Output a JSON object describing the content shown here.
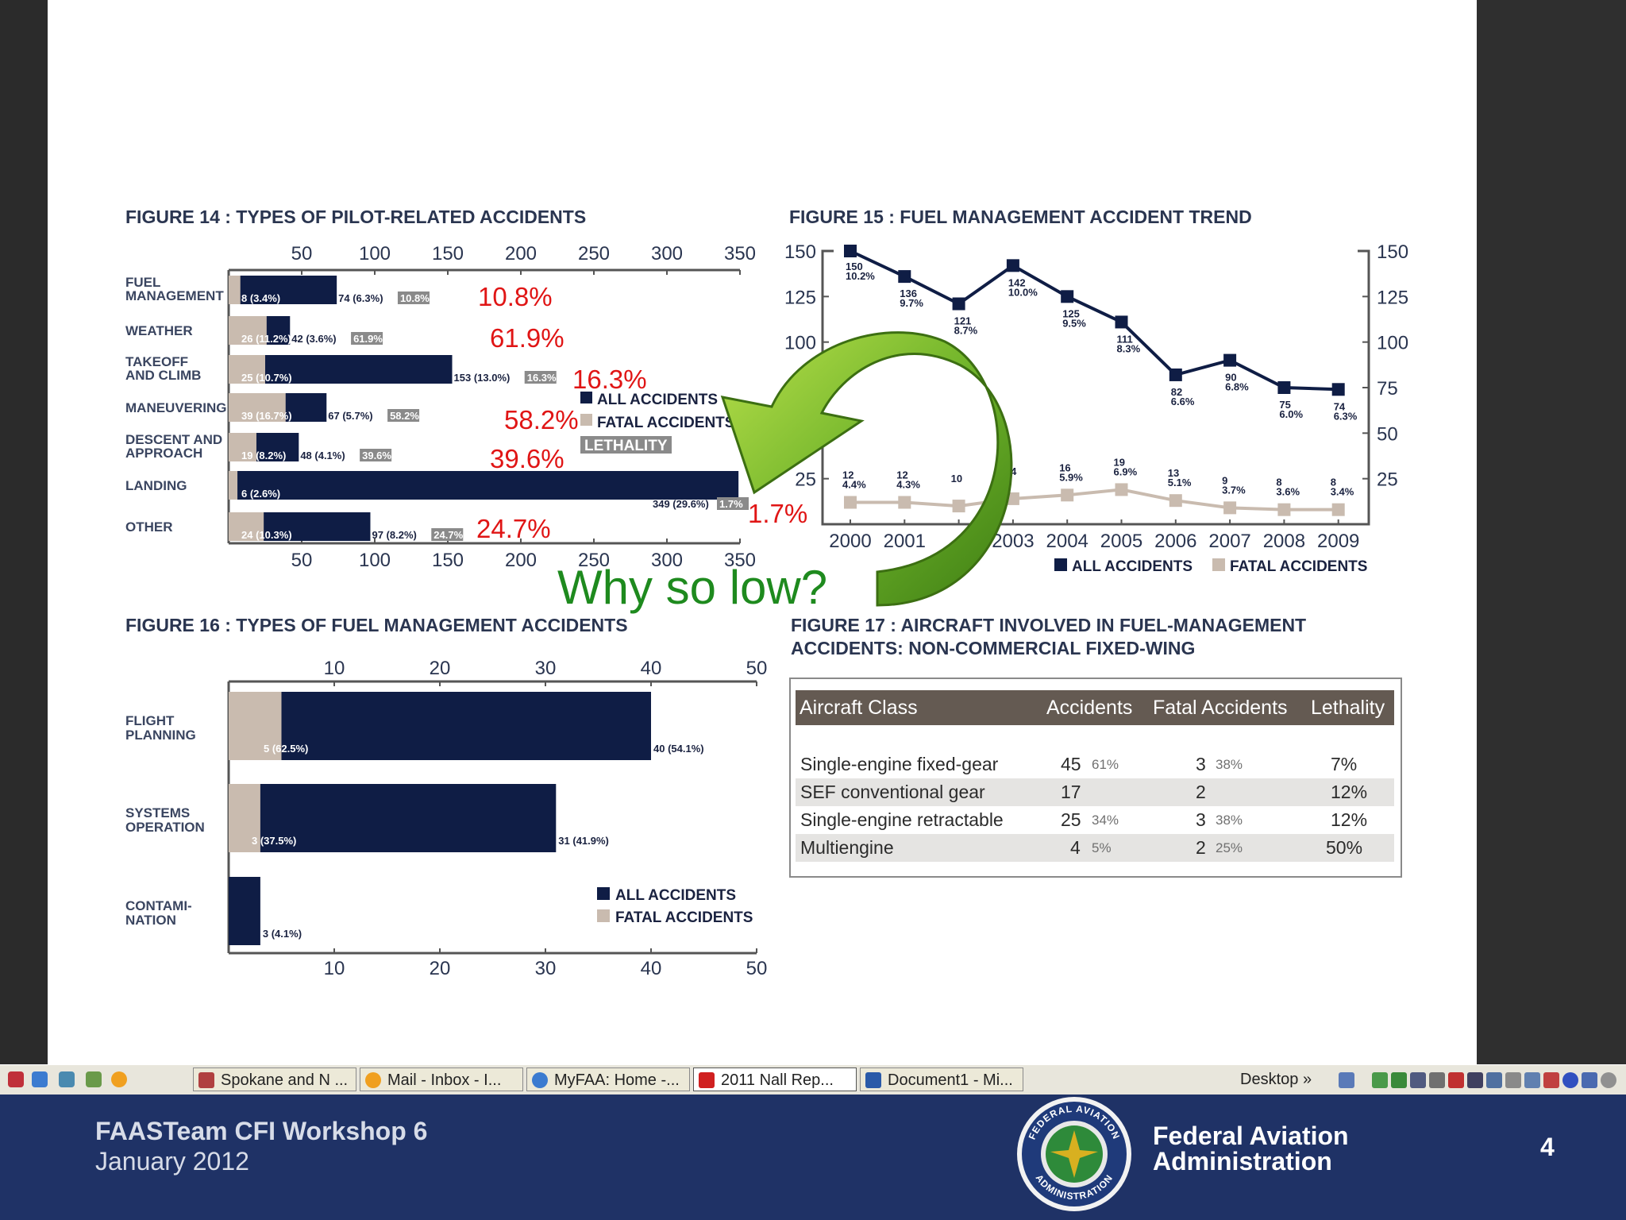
{
  "fig14": {
    "title": "FIGURE 14 : TYPES OF PILOT-RELATED ACCIDENTS",
    "ticks": [
      "50",
      "100",
      "150",
      "200",
      "250",
      "300",
      "350"
    ],
    "chart_data": {
      "type": "bar",
      "orientation": "horizontal",
      "categories": [
        [
          "FUEL",
          "MANAGEMENT"
        ],
        [
          "WEATHER"
        ],
        [
          "TAKEOFF",
          "AND CLIMB"
        ],
        [
          "MANEUVERING"
        ],
        [
          "DESCENT AND",
          "APPROACH"
        ],
        [
          "LANDING"
        ],
        [
          "OTHER"
        ]
      ],
      "series": [
        {
          "name": "ALL ACCIDENTS",
          "values": [
            74,
            42,
            153,
            67,
            48,
            349,
            97
          ]
        },
        {
          "name": "FATAL ACCIDENTS",
          "values": [
            8,
            26,
            25,
            39,
            19,
            6,
            24
          ]
        }
      ],
      "fatal_labels": [
        "8 (3.4%)",
        "26 (11.2%)",
        "25 (10.7%)",
        "39 (16.7%)",
        "19 (8.2%)",
        "6 (2.6%)",
        "24 (10.3%)"
      ],
      "all_labels": [
        "74 (6.3%)",
        "42 (3.6%)",
        "153 (13.0%)",
        "67 (5.7%)",
        "48 (4.1%)",
        "349 (29.6%)",
        "97 (8.2%)"
      ],
      "lethality": [
        "10.8%",
        "61.9%",
        "16.3%",
        "58.2%",
        "39.6%",
        "1.7%",
        "24.7%"
      ],
      "xlim": [
        0,
        350
      ]
    },
    "annotations": [
      "10.8%",
      "61.9%",
      "16.3%",
      "58.2%",
      "39.6%",
      "1.7%",
      "24.7%"
    ],
    "legend": {
      "all": "ALL ACCIDENTS",
      "fatal": "FATAL ACCIDENTS",
      "lethality": "LETHALITY"
    }
  },
  "fig15": {
    "title": "FIGURE 15 : FUEL MANAGEMENT ACCIDENT TREND",
    "yticks": [
      "150",
      "125",
      "100",
      "75",
      "50",
      "25"
    ],
    "chart_data": {
      "type": "line",
      "x": [
        "2000",
        "2001",
        "2002",
        "2003",
        "2004",
        "2005",
        "2006",
        "2007",
        "2008",
        "2009"
      ],
      "series": [
        {
          "name": "ALL ACCIDENTS",
          "values": [
            150,
            136,
            121,
            142,
            125,
            111,
            82,
            90,
            75,
            74
          ],
          "pct": [
            "10.2%",
            "9.7%",
            "8.7%",
            "10.0%",
            "9.5%",
            "8.3%",
            "6.6%",
            "6.8%",
            "6.0%",
            "6.3%"
          ]
        },
        {
          "name": "FATAL ACCIDENTS",
          "values": [
            12,
            12,
            10,
            14,
            16,
            19,
            13,
            9,
            8,
            8
          ],
          "pct": [
            "4.4%",
            "4.3%",
            "",
            "",
            "5.9%",
            "6.9%",
            "5.1%",
            "3.7%",
            "3.6%",
            "3.4%"
          ]
        }
      ],
      "ylim": [
        0,
        150
      ]
    },
    "xlabels": [
      "2000",
      "2001",
      "",
      "2003",
      "2004",
      "2005",
      "2006",
      "2007",
      "2008",
      "2009"
    ],
    "legend": {
      "all": "ALL ACCIDENTS",
      "fatal": "FATAL ACCIDENTS"
    }
  },
  "fig16": {
    "title": "FIGURE 16 : TYPES OF FUEL MANAGEMENT ACCIDENTS",
    "ticks": [
      "10",
      "20",
      "30",
      "40",
      "50"
    ],
    "chart_data": {
      "type": "bar",
      "orientation": "horizontal",
      "categories": [
        [
          "FLIGHT",
          "PLANNING"
        ],
        [
          "SYSTEMS",
          "OPERATION"
        ],
        [
          "CONTAMI-",
          "NATION"
        ]
      ],
      "series": [
        {
          "name": "ALL ACCIDENTS",
          "values": [
            40,
            31,
            3
          ]
        },
        {
          "name": "FATAL ACCIDENTS",
          "values": [
            5,
            3,
            0
          ]
        }
      ],
      "fatal_labels": [
        "5 (62.5%)",
        "3 (37.5%)",
        ""
      ],
      "all_labels": [
        "40 (54.1%)",
        "31 (41.9%)",
        "3 (4.1%)"
      ],
      "xlim": [
        0,
        50
      ]
    },
    "legend": {
      "all": "ALL ACCIDENTS",
      "fatal": "FATAL ACCIDENTS"
    }
  },
  "fig17": {
    "title_line1": "FIGURE 17 : AIRCRAFT INVOLVED IN FUEL-MANAGEMENT",
    "title_line2": "ACCIDENTS: NON-COMMERCIAL FIXED-WING",
    "headers": [
      "Aircraft Class",
      "Accidents",
      "Fatal Accidents",
      "Lethality"
    ],
    "rows": [
      {
        "cls": "Single-engine fixed-gear",
        "acc": "45",
        "acc_pct": "61%",
        "fatal": "3",
        "fatal_pct": "38%",
        "leth": "7%"
      },
      {
        "cls": "SEF conventional gear",
        "acc": "17",
        "acc_pct": "",
        "fatal": "2",
        "fatal_pct": "",
        "leth": "12%"
      },
      {
        "cls": "Single-engine retractable",
        "acc": "25",
        "acc_pct": "34%",
        "fatal": "3",
        "fatal_pct": "38%",
        "leth": "12%"
      },
      {
        "cls": "Multiengine",
        "acc": "4",
        "acc_pct": "5%",
        "fatal": "2",
        "fatal_pct": "25%",
        "leth": "50%"
      }
    ]
  },
  "overlay": {
    "question": "Why so low?"
  },
  "taskbar": {
    "windows": [
      "Spokane and N ...",
      "Mail - Inbox - I...",
      "MyFAA: Home -...",
      "2011 Nall Rep...",
      "Document1 - Mi..."
    ],
    "desktop": "Desktop",
    "chevron": "»"
  },
  "footer": {
    "title": "FAASTeam CFI Workshop 6",
    "date": "January 2012",
    "org_line1": "Federal Aviation",
    "org_line2": "Administration",
    "slide_number": "4",
    "seal_top": "FEDERAL AVIATION",
    "seal_bottom": "ADMINISTRATION"
  },
  "colors": {
    "navy": "#0f1d45",
    "tan": "#c9bbaf",
    "red": "#e01515",
    "green": "#1e8a1e",
    "footer": "#1f3266"
  }
}
